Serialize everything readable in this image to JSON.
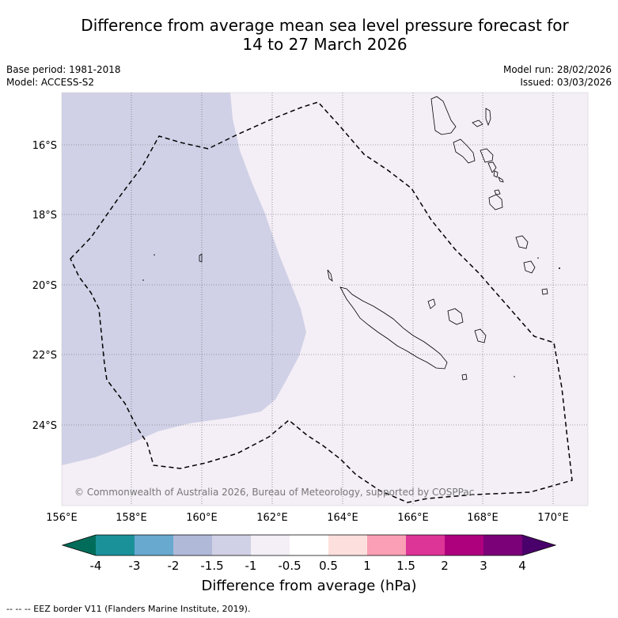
{
  "title": {
    "line1": "Difference from average mean sea level pressure forecast for",
    "line2": "14 to 27 March 2026"
  },
  "meta": {
    "base_period": "Base period: 1981-2018",
    "model": "Model: ACCESS-S2",
    "model_run": "Model run: 28/02/2026",
    "issued": "Issued: 03/03/2026"
  },
  "map": {
    "lat_labels": [
      "16°S",
      "18°S",
      "20°S",
      "22°S",
      "24°S"
    ],
    "lon_labels": [
      "156°E",
      "158°E",
      "160°E",
      "162°E",
      "164°E",
      "166°E",
      "168°E",
      "170°E"
    ],
    "copyright": "© Commonwealth of Australia 2026, Bureau of Meteorology, supported by COSPPac",
    "anomaly_regions": [
      {
        "range": "-1.5 to -1",
        "color": "#d0d1e6"
      },
      {
        "range": "-1 to -0.5",
        "color": "#f4eef6"
      }
    ]
  },
  "colorbar": {
    "ticks": [
      "-4",
      "-3",
      "-2",
      "-1.5",
      "-1",
      "-0.5",
      "0.5",
      "1",
      "1.5",
      "2",
      "3",
      "4"
    ],
    "colors": [
      "#1a9099",
      "#67a9cf",
      "#b0b9d8",
      "#d0d1e6",
      "#f4eef6",
      "#ffffff",
      "#fde0dd",
      "#fa9fb5",
      "#dd3497",
      "#ae017e",
      "#7a0177"
    ],
    "low_color": "#016c59",
    "high_color": "#49006a",
    "label": "Difference from average (hPa)"
  },
  "footer": {
    "legend": "--  --  -- EEZ border V11 (Flanders Marine Institute, 2019)."
  }
}
